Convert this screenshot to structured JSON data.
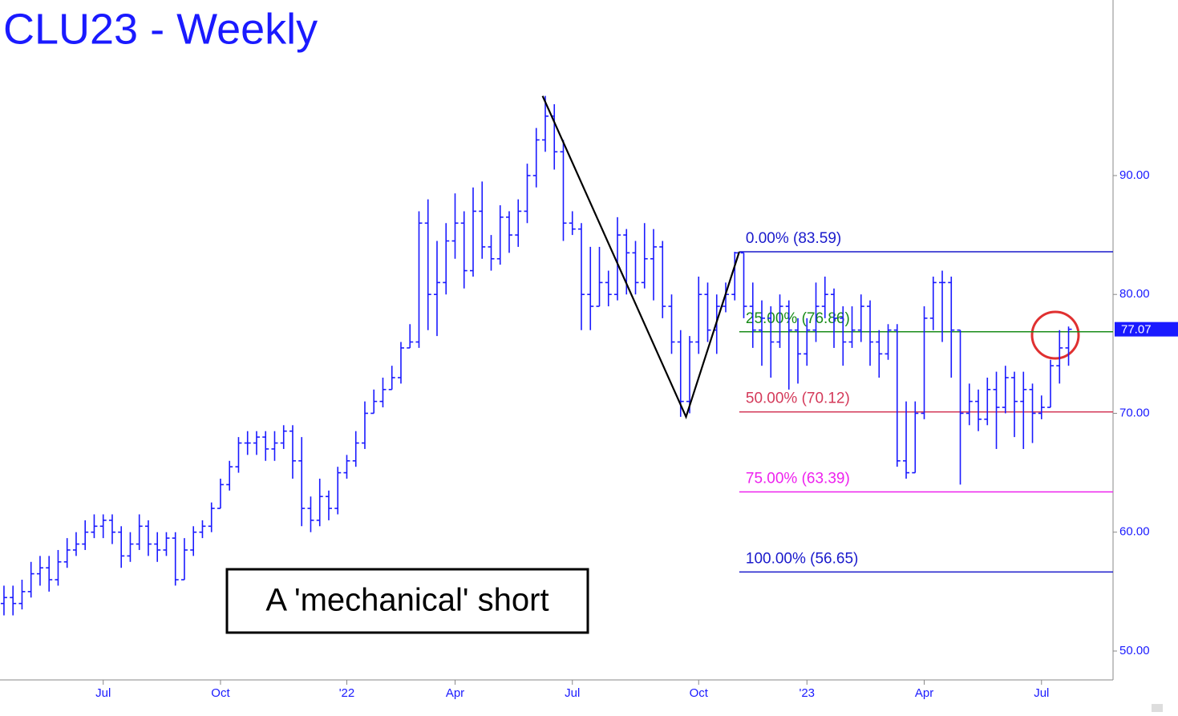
{
  "chart_data": {
    "type": "ohlc",
    "title": "CLU23 - Weekly",
    "annotation": "A 'mechanical' short",
    "color": "#1a1aff",
    "ylim": [
      47.57,
      104.77
    ],
    "yticks": [
      {
        "value": 50,
        "label": "50.00"
      },
      {
        "value": 60,
        "label": "60.00"
      },
      {
        "value": 70,
        "label": "70.00"
      },
      {
        "value": 80,
        "label": "80.00"
      },
      {
        "value": 90,
        "label": "90.00"
      }
    ],
    "xlim": [
      -0.44,
      122.93
    ],
    "xticks": [
      {
        "value": 11,
        "label": "Jul"
      },
      {
        "value": 24,
        "label": "Oct"
      },
      {
        "value": 38,
        "label": "'22"
      },
      {
        "value": 50,
        "label": "Apr"
      },
      {
        "value": 63,
        "label": "Jul"
      },
      {
        "value": 77,
        "label": "Oct"
      },
      {
        "value": 89,
        "label": "'23"
      },
      {
        "value": 102,
        "label": "Apr"
      },
      {
        "value": 115,
        "label": "Jul"
      }
    ],
    "last_price": 77.07,
    "open": [
      54,
      54.5,
      54,
      55,
      56.5,
      57,
      56,
      57.5,
      58.5,
      59,
      60,
      60.5,
      61,
      60,
      58,
      59,
      60.5,
      59,
      58.5,
      59.5,
      56,
      58.5,
      60,
      60.5,
      62,
      64,
      65.5,
      67.5,
      67.5,
      68,
      67,
      67.5,
      68.5,
      66,
      62,
      61,
      63,
      62,
      65,
      66,
      67.5,
      70,
      71,
      72,
      73,
      75.5,
      76,
      86,
      80,
      81,
      84.5,
      86,
      82,
      87,
      84,
      83,
      86.5,
      85,
      87,
      90,
      93,
      95,
      92,
      86,
      85.5,
      80,
      79,
      81,
      80,
      85,
      83.5,
      81,
      83,
      84,
      79,
      76,
      71,
      76,
      80,
      77,
      79,
      80,
      83.5,
      79,
      77,
      78,
      76,
      79,
      77,
      75,
      77,
      79,
      80,
      78,
      76,
      77,
      79,
      76,
      75,
      77,
      66,
      65,
      70,
      78,
      81,
      81,
      77,
      70,
      71,
      69.5,
      72,
      70.5,
      73,
      71,
      72,
      70,
      70.5,
      74,
      75.5
    ],
    "high": [
      55.5,
      55.5,
      56,
      57.5,
      58,
      58,
      58.5,
      59.5,
      60,
      61,
      61.5,
      61.5,
      61.5,
      60.5,
      60,
      61.5,
      61,
      60,
      60,
      60,
      59.5,
      60.5,
      61,
      62.5,
      64.5,
      66,
      68,
      68.5,
      68.5,
      68.5,
      68.5,
      69,
      69,
      68,
      63,
      64.5,
      63.5,
      65.5,
      66.5,
      68.5,
      71,
      72,
      73,
      74,
      76,
      77.5,
      87,
      88,
      84.5,
      86,
      88.5,
      87,
      89,
      89.5,
      85,
      87.5,
      87,
      88,
      91,
      94,
      96.7,
      96,
      93,
      87,
      86,
      84,
      84,
      82,
      86.5,
      85.5,
      84.5,
      86,
      85.5,
      84.5,
      80,
      77,
      76.5,
      81.5,
      81,
      80,
      81,
      83.59,
      83.5,
      81,
      79.5,
      79,
      80,
      79.5,
      78,
      78,
      81,
      81.5,
      80.5,
      79,
      79,
      80,
      79.5,
      77,
      77.5,
      77.5,
      71,
      71,
      79,
      81.5,
      82,
      81.5,
      77,
      72.5,
      72,
      73,
      73.5,
      74,
      73.5,
      73.5,
      72.5,
      71.5,
      74.5,
      77,
      77.3
    ],
    "low": [
      53,
      53,
      53.5,
      54.5,
      55.5,
      55,
      55.5,
      57,
      58,
      58.5,
      59.5,
      59.5,
      59,
      57,
      57.5,
      58.5,
      58,
      57.5,
      58,
      55.5,
      56,
      58,
      59.5,
      60,
      62,
      63.5,
      65,
      66.5,
      66.5,
      66,
      66,
      67,
      64.5,
      60.5,
      60,
      60.5,
      61,
      61.5,
      64.5,
      65.5,
      67,
      70,
      70.5,
      72,
      72.5,
      75.5,
      75.5,
      77,
      76.5,
      80,
      83,
      80.5,
      81.5,
      83,
      82,
      82.5,
      83.5,
      84,
      86,
      89,
      92,
      90.5,
      84.5,
      85,
      77,
      77,
      79,
      79,
      79.5,
      80,
      80,
      80.5,
      79.5,
      78,
      75,
      69.7,
      70,
      75,
      76,
      75,
      78.5,
      79.5,
      78,
      75.5,
      74,
      73,
      75.5,
      72,
      72.5,
      74,
      76,
      78,
      75.5,
      74,
      75.5,
      76,
      74,
      73,
      74.5,
      65.5,
      64.5,
      65,
      69.5,
      77,
      76,
      73,
      64,
      69,
      68.5,
      69,
      67,
      70,
      68,
      67,
      67.5,
      69.5,
      70.5,
      72.5,
      74
    ],
    "close": [
      54.5,
      54,
      55,
      56.5,
      57,
      56,
      57.5,
      58.5,
      59,
      60,
      60.5,
      61,
      60,
      58,
      59,
      60.5,
      59,
      58.5,
      59.5,
      56,
      58.5,
      60,
      60.5,
      62,
      64,
      65.5,
      67.5,
      67.5,
      68,
      67,
      67.5,
      68.5,
      66,
      62,
      61,
      63,
      62,
      65,
      66,
      67.5,
      70,
      71,
      72,
      73,
      75.5,
      76,
      86,
      80,
      81,
      84.5,
      86,
      82,
      87,
      84,
      83,
      86.5,
      85,
      87,
      90,
      93,
      95,
      92,
      86,
      85.5,
      80,
      79,
      81,
      80,
      85,
      83.5,
      81,
      83,
      84,
      79,
      76,
      71,
      76,
      80,
      77,
      79,
      80,
      83.5,
      79,
      77,
      78,
      76,
      79,
      77,
      75,
      77,
      79,
      80,
      78,
      76,
      77,
      79,
      76,
      75,
      77,
      66,
      65,
      70,
      78,
      81,
      81,
      77,
      70,
      71,
      69.5,
      72,
      70.5,
      73,
      71,
      72,
      70,
      70.5,
      74,
      75.5,
      77.07
    ],
    "swing_points": [
      {
        "x": 59.7,
        "y": 96.7
      },
      {
        "x": 75.6,
        "y": 69.7
      },
      {
        "x": 81.5,
        "y": 83.59
      }
    ],
    "fib_levels": [
      {
        "label": "0.00% (83.59)",
        "value": 83.59,
        "color": "#1a1acc"
      },
      {
        "label": "25.00% (76.86)",
        "value": 76.86,
        "color": "#1a8c1a"
      },
      {
        "label": "50.00% (70.12)",
        "value": 70.12,
        "color": "#d43a5a"
      },
      {
        "label": "75.00% (63.39)",
        "value": 63.39,
        "color": "#ee22ee"
      },
      {
        "label": "100.00% (56.65)",
        "value": 56.65,
        "color": "#1a1acc"
      }
    ]
  }
}
